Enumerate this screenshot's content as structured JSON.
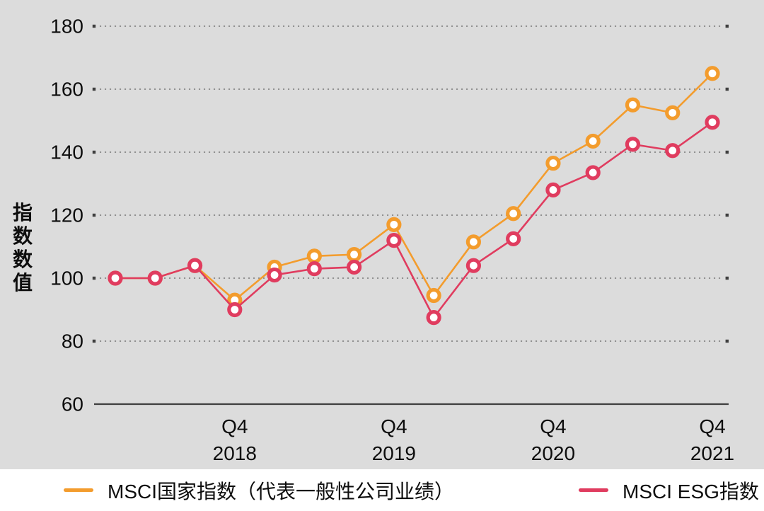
{
  "page": {
    "background": "#ffffff",
    "chart_background": "#dcdcdc",
    "text_color": "#0d0d0d",
    "axis_line_color": "#3f3f3f",
    "gridline_color": "#8d8d8d"
  },
  "chart_data": {
    "type": "line",
    "title": "",
    "ylabel": "指数数值",
    "xlabel": "",
    "ylim": [
      60,
      180
    ],
    "yticks": [
      60,
      80,
      100,
      120,
      140,
      160,
      180
    ],
    "grid": "dotted-horizontal",
    "legend_position": "bottom",
    "x_count": 16,
    "x_unit": "quarter",
    "x_tick_labels": [
      {
        "point_index": 3,
        "quarter": "Q4",
        "year": "2018"
      },
      {
        "point_index": 7,
        "quarter": "Q4",
        "year": "2019"
      },
      {
        "point_index": 11,
        "quarter": "Q4",
        "year": "2020"
      },
      {
        "point_index": 15,
        "quarter": "Q4",
        "year": "2021"
      }
    ],
    "series": [
      {
        "name": "MSCI国家指数（代表一般性公司业绩）",
        "color": "#F39C2D",
        "marker": "open-circle",
        "values": [
          100,
          100,
          104,
          93,
          103.5,
          107,
          107.5,
          117,
          94.5,
          111.5,
          120.5,
          136.5,
          143.5,
          155,
          152.5,
          165
        ]
      },
      {
        "name": "MSCI ESG指数",
        "color": "#E03C5F",
        "marker": "open-circle",
        "values": [
          100,
          100,
          104,
          90,
          101,
          103,
          103.5,
          112,
          87.5,
          104,
          112.5,
          128,
          133.5,
          142.5,
          140.5,
          149.5
        ]
      }
    ]
  }
}
